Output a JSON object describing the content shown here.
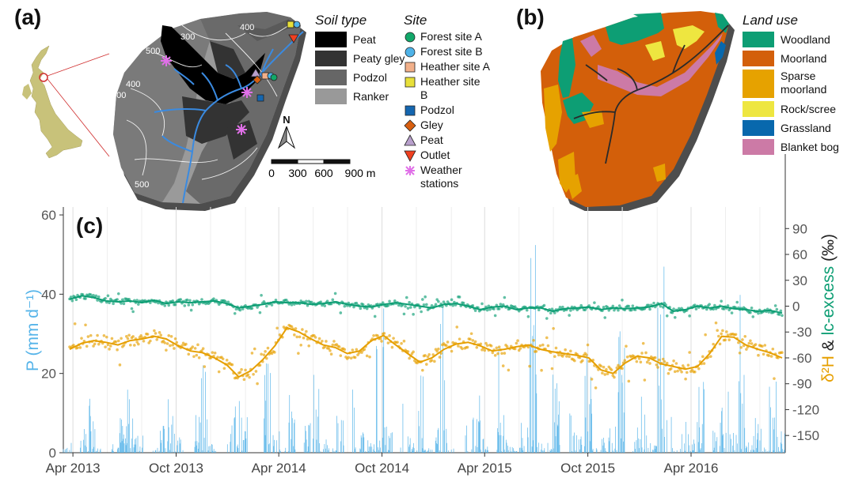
{
  "panel_a": {
    "label": "(a)",
    "soil_legend": {
      "title": "Soil type",
      "items": [
        {
          "label": "Peat",
          "color": "#000000"
        },
        {
          "label": "Peaty gley",
          "color": "#333333"
        },
        {
          "label": "Podzol",
          "color": "#666666"
        },
        {
          "label": "Ranker",
          "color": "#999999"
        }
      ]
    },
    "site_legend": {
      "title": "Site",
      "items": [
        {
          "label": "Forest site A",
          "shape": "circle",
          "color": "#12a86a"
        },
        {
          "label": "Forest site B",
          "shape": "circle",
          "color": "#4fb3e8"
        },
        {
          "label": "Heather site A",
          "shape": "square",
          "color": "#f2b08a"
        },
        {
          "label": "Heather site B",
          "shape": "square",
          "color": "#e8e03a"
        },
        {
          "label": "Podzol",
          "shape": "square",
          "color": "#1466b0"
        },
        {
          "label": "Gley",
          "shape": "diamond",
          "color": "#d85f10"
        },
        {
          "label": "Peat",
          "shape": "triangle-up",
          "color": "#b8a0cc"
        },
        {
          "label": "Outlet",
          "shape": "triangle-down",
          "color": "#f04020"
        },
        {
          "label": "Weather stations",
          "shape": "asterisk",
          "color": "#e070e8"
        }
      ]
    },
    "contours": [
      "400",
      "300",
      "500",
      "400",
      "500",
      "500"
    ],
    "north": "N",
    "scale_labels": [
      "0",
      "300",
      "600",
      "900 m"
    ]
  },
  "panel_b": {
    "label": "(b)",
    "legend": {
      "title": "Land use",
      "items": [
        {
          "label": "Woodland",
          "color": "#0d9e74"
        },
        {
          "label": "Moorland",
          "color": "#d35f0a"
        },
        {
          "label": "Sparse moorland",
          "color": "#e6a200"
        },
        {
          "label": "Rock/scree",
          "color": "#eee640"
        },
        {
          "label": "Grassland",
          "color": "#0868ad"
        },
        {
          "label": "Blanket bog",
          "color": "#cc7aa6"
        }
      ]
    }
  },
  "panel_c": {
    "label": "(c)",
    "left_axis_label": "P (mm d⁻¹)",
    "right_axis_label_1": "δ²H",
    "right_axis_label_amp": " & ",
    "right_axis_label_2": "lc-excess",
    "right_axis_unit": "(‰)",
    "colors": {
      "precip": "#56b4e9",
      "d2h": "#e69f00",
      "lcexcess": "#0d9e74"
    }
  },
  "chart_data": {
    "type": "line",
    "x_ticks": [
      "Apr 2013",
      "Oct 2013",
      "Apr 2014",
      "Oct 2014",
      "Apr 2015",
      "Oct 2015",
      "Apr 2016"
    ],
    "x_range": [
      "2013-03-15",
      "2016-09-15"
    ],
    "left_axis": {
      "label": "P (mm d⁻¹)",
      "ticks": [
        0,
        20,
        40,
        60
      ],
      "ylim": [
        0,
        62
      ]
    },
    "right_axis": {
      "label": "δ²H & lc-excess (‰)",
      "ticks": [
        -150,
        -120,
        -90,
        -60,
        -30,
        0,
        30,
        60,
        90
      ],
      "ylim": [
        -170,
        115
      ]
    },
    "series": [
      {
        "name": "P",
        "axis": "left",
        "kind": "bars",
        "values": [
          2,
          0,
          5,
          12,
          1,
          0,
          3,
          8,
          22,
          4,
          0,
          1,
          6,
          15,
          3,
          0,
          9,
          28,
          2,
          0,
          4,
          11,
          7,
          1,
          0,
          18,
          5,
          2,
          13,
          0,
          6,
          25,
          3,
          1,
          8,
          0,
          14,
          4,
          2,
          30,
          6,
          0,
          10,
          3,
          17,
          1,
          5,
          36,
          2,
          0,
          7,
          12,
          4,
          0,
          21,
          3,
          1,
          9,
          55,
          6,
          2,
          16,
          0,
          8,
          4,
          19,
          1,
          3,
          11,
          27,
          0,
          5,
          14,
          2,
          40,
          7,
          1,
          9,
          3,
          18,
          0,
          6,
          12,
          4,
          33,
          2,
          8,
          1,
          15,
          5
        ]
      },
      {
        "name": "δ²H",
        "axis": "right",
        "kind": "line",
        "values": [
          -50,
          -43,
          -40,
          -42,
          -45,
          -40,
          -38,
          -35,
          -38,
          -46,
          -52,
          -54,
          -60,
          -68,
          -82,
          -75,
          -62,
          -46,
          -25,
          -30,
          -38,
          -45,
          -48,
          -55,
          -52,
          -40,
          -34,
          -45,
          -55,
          -65,
          -60,
          -50,
          -44,
          -42,
          -46,
          -52,
          -50,
          -47,
          -45,
          -50,
          -53,
          -55,
          -57,
          -60,
          -74,
          -78,
          -66,
          -58,
          -60,
          -67,
          -70,
          -73,
          -70,
          -55,
          -35,
          -36,
          -45,
          -50,
          -54,
          -60
        ]
      },
      {
        "name": "lc-excess",
        "axis": "right",
        "kind": "line",
        "values": [
          8,
          12,
          10,
          6,
          5,
          6,
          4,
          7,
          3,
          5,
          4,
          5,
          6,
          3,
          -2,
          0,
          2,
          5,
          4,
          4,
          2,
          3,
          5,
          2,
          0,
          -1,
          2,
          4,
          2,
          0,
          -2,
          2,
          3,
          0,
          -4,
          -1,
          0,
          -4,
          -2,
          -2,
          -6,
          -3,
          -2,
          -1,
          -4,
          -2,
          -3,
          -2,
          -1,
          3,
          -6,
          -4,
          0,
          -2,
          0,
          -3,
          -4,
          -6,
          -5,
          -8
        ]
      }
    ]
  }
}
